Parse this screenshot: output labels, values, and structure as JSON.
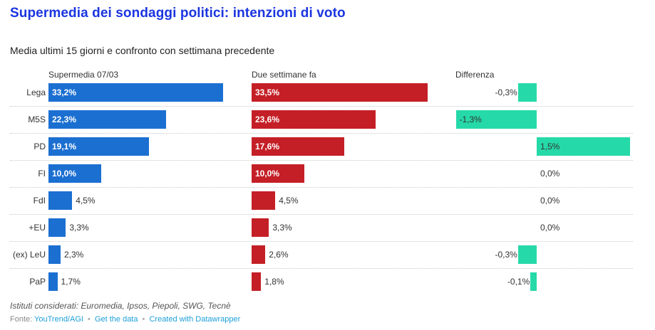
{
  "header": {
    "title": "Supermedia dei sondaggi politici: intenzioni di voto",
    "subtitle": "Media ultimi 15 giorni e confronto con settimana precedente"
  },
  "chart_data": {
    "type": "bar",
    "orientation": "horizontal",
    "title": "Supermedia dei sondaggi politici: intenzioni di voto",
    "subtitle": "Media ultimi 15 giorni e confronto con settimana precedente",
    "categories": [
      "Lega",
      "M5S",
      "PD",
      "FI",
      "FdI",
      "+EU",
      "(ex) LeU",
      "PaP"
    ],
    "series": [
      {
        "name": "Supermedia 07/03",
        "color": "#1b6fd1",
        "values": [
          33.2,
          22.3,
          19.1,
          10.0,
          4.5,
          3.3,
          2.3,
          1.7
        ],
        "labels": [
          "33,2%",
          "22,3%",
          "19,1%",
          "10,0%",
          "4,5%",
          "3,3%",
          "2,3%",
          "1,7%"
        ]
      },
      {
        "name": "Due settimane fa",
        "color": "#c41f26",
        "values": [
          33.5,
          23.6,
          17.6,
          10.0,
          4.5,
          3.3,
          2.6,
          1.8
        ],
        "labels": [
          "33,5%",
          "23,6%",
          "17,6%",
          "10,0%",
          "4,5%",
          "3,3%",
          "2,6%",
          "1,8%"
        ]
      },
      {
        "name": "Differenza",
        "color": "#26d9a8",
        "values": [
          -0.3,
          -1.3,
          1.5,
          0.0,
          0.0,
          0.0,
          -0.3,
          -0.1
        ],
        "labels": [
          "-0,3%",
          "-1,3%",
          "1,5%",
          "0,0%",
          "0,0%",
          "0,0%",
          "-0,3%",
          "-0,1%"
        ]
      }
    ],
    "xlabel": "",
    "ylabel": "",
    "grid": false,
    "legend": "column headers"
  },
  "footer": {
    "notes": "Istituti considerati: Euromedia, Ipsos, Piepoli, SWG, Tecnè",
    "source_prefix": "Fonte:",
    "source_link": "YouTrend/AGI",
    "get_data_link": "Get the data",
    "created_with_link": "Created with Datawrapper",
    "separator": "•"
  }
}
